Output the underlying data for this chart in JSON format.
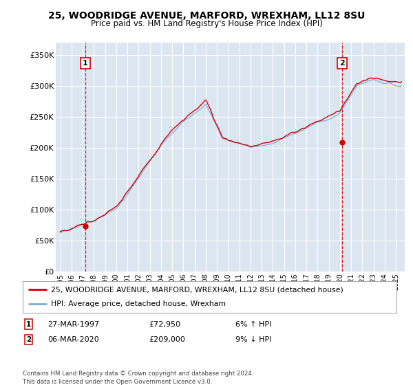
{
  "title": "25, WOODRIDGE AVENUE, MARFORD, WREXHAM, LL12 8SU",
  "subtitle": "Price paid vs. HM Land Registry's House Price Index (HPI)",
  "ylim": [
    0,
    370000
  ],
  "yticks": [
    0,
    50000,
    100000,
    150000,
    200000,
    250000,
    300000,
    350000
  ],
  "ytick_labels": [
    "£0",
    "£50K",
    "£100K",
    "£150K",
    "£200K",
    "£250K",
    "£300K",
    "£350K"
  ],
  "plot_bg_color": "#dce6f1",
  "grid_color": "#ffffff",
  "sale1_date": 1997.23,
  "sale1_price": 72950,
  "sale2_date": 2020.18,
  "sale2_price": 209000,
  "legend_line1": "25, WOODRIDGE AVENUE, MARFORD, WREXHAM, LL12 8SU (detached house)",
  "legend_line2": "HPI: Average price, detached house, Wrexham",
  "annotation1_date": "27-MAR-1997",
  "annotation1_price": "£72,950",
  "annotation1_hpi": "6% ↑ HPI",
  "annotation2_date": "06-MAR-2020",
  "annotation2_price": "£209,000",
  "annotation2_hpi": "9% ↓ HPI",
  "footer": "Contains HM Land Registry data © Crown copyright and database right 2024.\nThis data is licensed under the Open Government Licence v3.0.",
  "house_color": "#cc0000",
  "hpi_color": "#7bafd4"
}
